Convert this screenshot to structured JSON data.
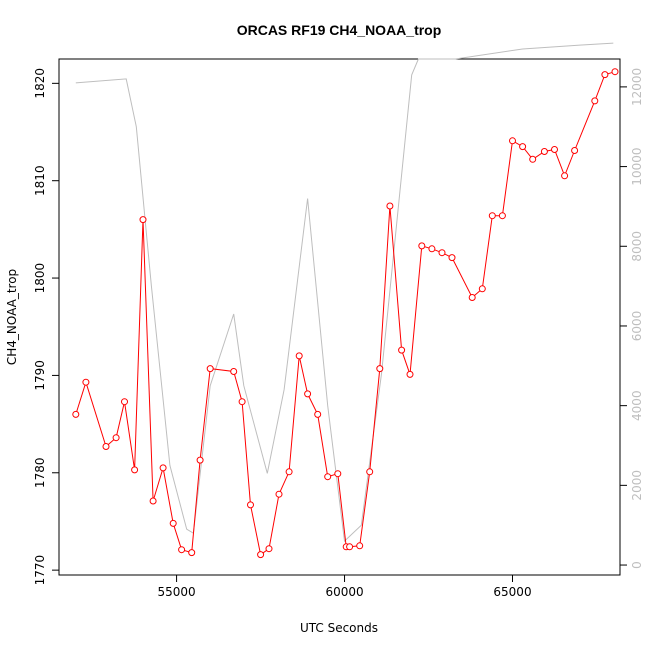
{
  "chart_data": {
    "type": "line",
    "title": "ORCAS RF19 CH4_NOAA_trop",
    "xlabel": "UTC Seconds",
    "ylabel": "CH4_NOAA_trop",
    "xlim": [
      51500,
      68200
    ],
    "ylim": [
      1769.5,
      1822.5
    ],
    "y2lim": [
      -250,
      12700
    ],
    "x_ticks": [
      55000,
      60000,
      65000
    ],
    "x_tick_labels": [
      "55000",
      "60000",
      "65000"
    ],
    "y_ticks": [
      1770,
      1780,
      1790,
      1800,
      1810,
      1820
    ],
    "y_tick_labels": [
      "1770",
      "1780",
      "1790",
      "1800",
      "1810",
      "1820"
    ],
    "y2_ticks": [
      0,
      2000,
      4000,
      6000,
      8000,
      10000,
      12000
    ],
    "y2_tick_labels": [
      "0",
      "2000",
      "4000",
      "6000",
      "8000",
      "10000",
      "12000"
    ],
    "grid": false,
    "colors": {
      "ch4": "#ff0000",
      "altitude": "#bebebe",
      "axis": "#000000"
    },
    "series": [
      {
        "axis": "left",
        "style": "line+points",
        "x": [
          52000,
          52300,
          52900,
          53200,
          53450,
          53750,
          54000,
          54300,
          54600,
          54900,
          55150,
          55450,
          55700,
          56000,
          56700,
          56950,
          57200,
          57500,
          57750,
          58050,
          58350,
          58650,
          58900,
          59200,
          59500,
          59800,
          60050,
          60150,
          60450,
          60750,
          61050,
          61350,
          61700,
          61950,
          62300,
          62600,
          62900,
          63200,
          63800,
          64100,
          64400,
          64700,
          65000,
          65300,
          65600,
          65950,
          66250,
          66550,
          66850,
          67450,
          67750,
          68050
        ],
        "y": [
          1786,
          1789.3,
          1782.7,
          1783.6,
          1787.3,
          1780.3,
          1806,
          1777.1,
          1780.5,
          1774.8,
          1772.1,
          1771.8,
          1781.3,
          1790.7,
          1790.4,
          1787.3,
          1776.7,
          1771.6,
          1772.2,
          1777.8,
          1780.1,
          1792,
          1788.1,
          1786,
          1779.6,
          1779.9,
          1772.4,
          1772.4,
          1772.5,
          1780.1,
          1790.7,
          1807.4,
          1792.6,
          1790.1,
          1803.3,
          1803,
          1802.6,
          1802.1,
          1798,
          1798.9,
          1806.4,
          1806.4,
          1814.1,
          1813.5,
          1812.2,
          1813,
          1813.2,
          1810.5,
          1813.1,
          1818.2,
          1820.9,
          1821.2
        ]
      },
      {
        "axis": "right",
        "style": "line",
        "x": [
          52000,
          53500,
          53800,
          54250,
          54800,
          55300,
          55500,
          56000,
          56700,
          57000,
          57700,
          58200,
          58900,
          59500,
          60000,
          60500,
          61100,
          62000,
          62200,
          63300,
          65300,
          67000,
          68000
        ],
        "y": [
          12100,
          12200,
          11000,
          7000,
          2500,
          900,
          800,
          4500,
          6300,
          4500,
          2300,
          4400,
          9200,
          4000,
          600,
          1000,
          4800,
          12300,
          12700,
          12700,
          12950,
          13050,
          13100
        ]
      }
    ]
  }
}
